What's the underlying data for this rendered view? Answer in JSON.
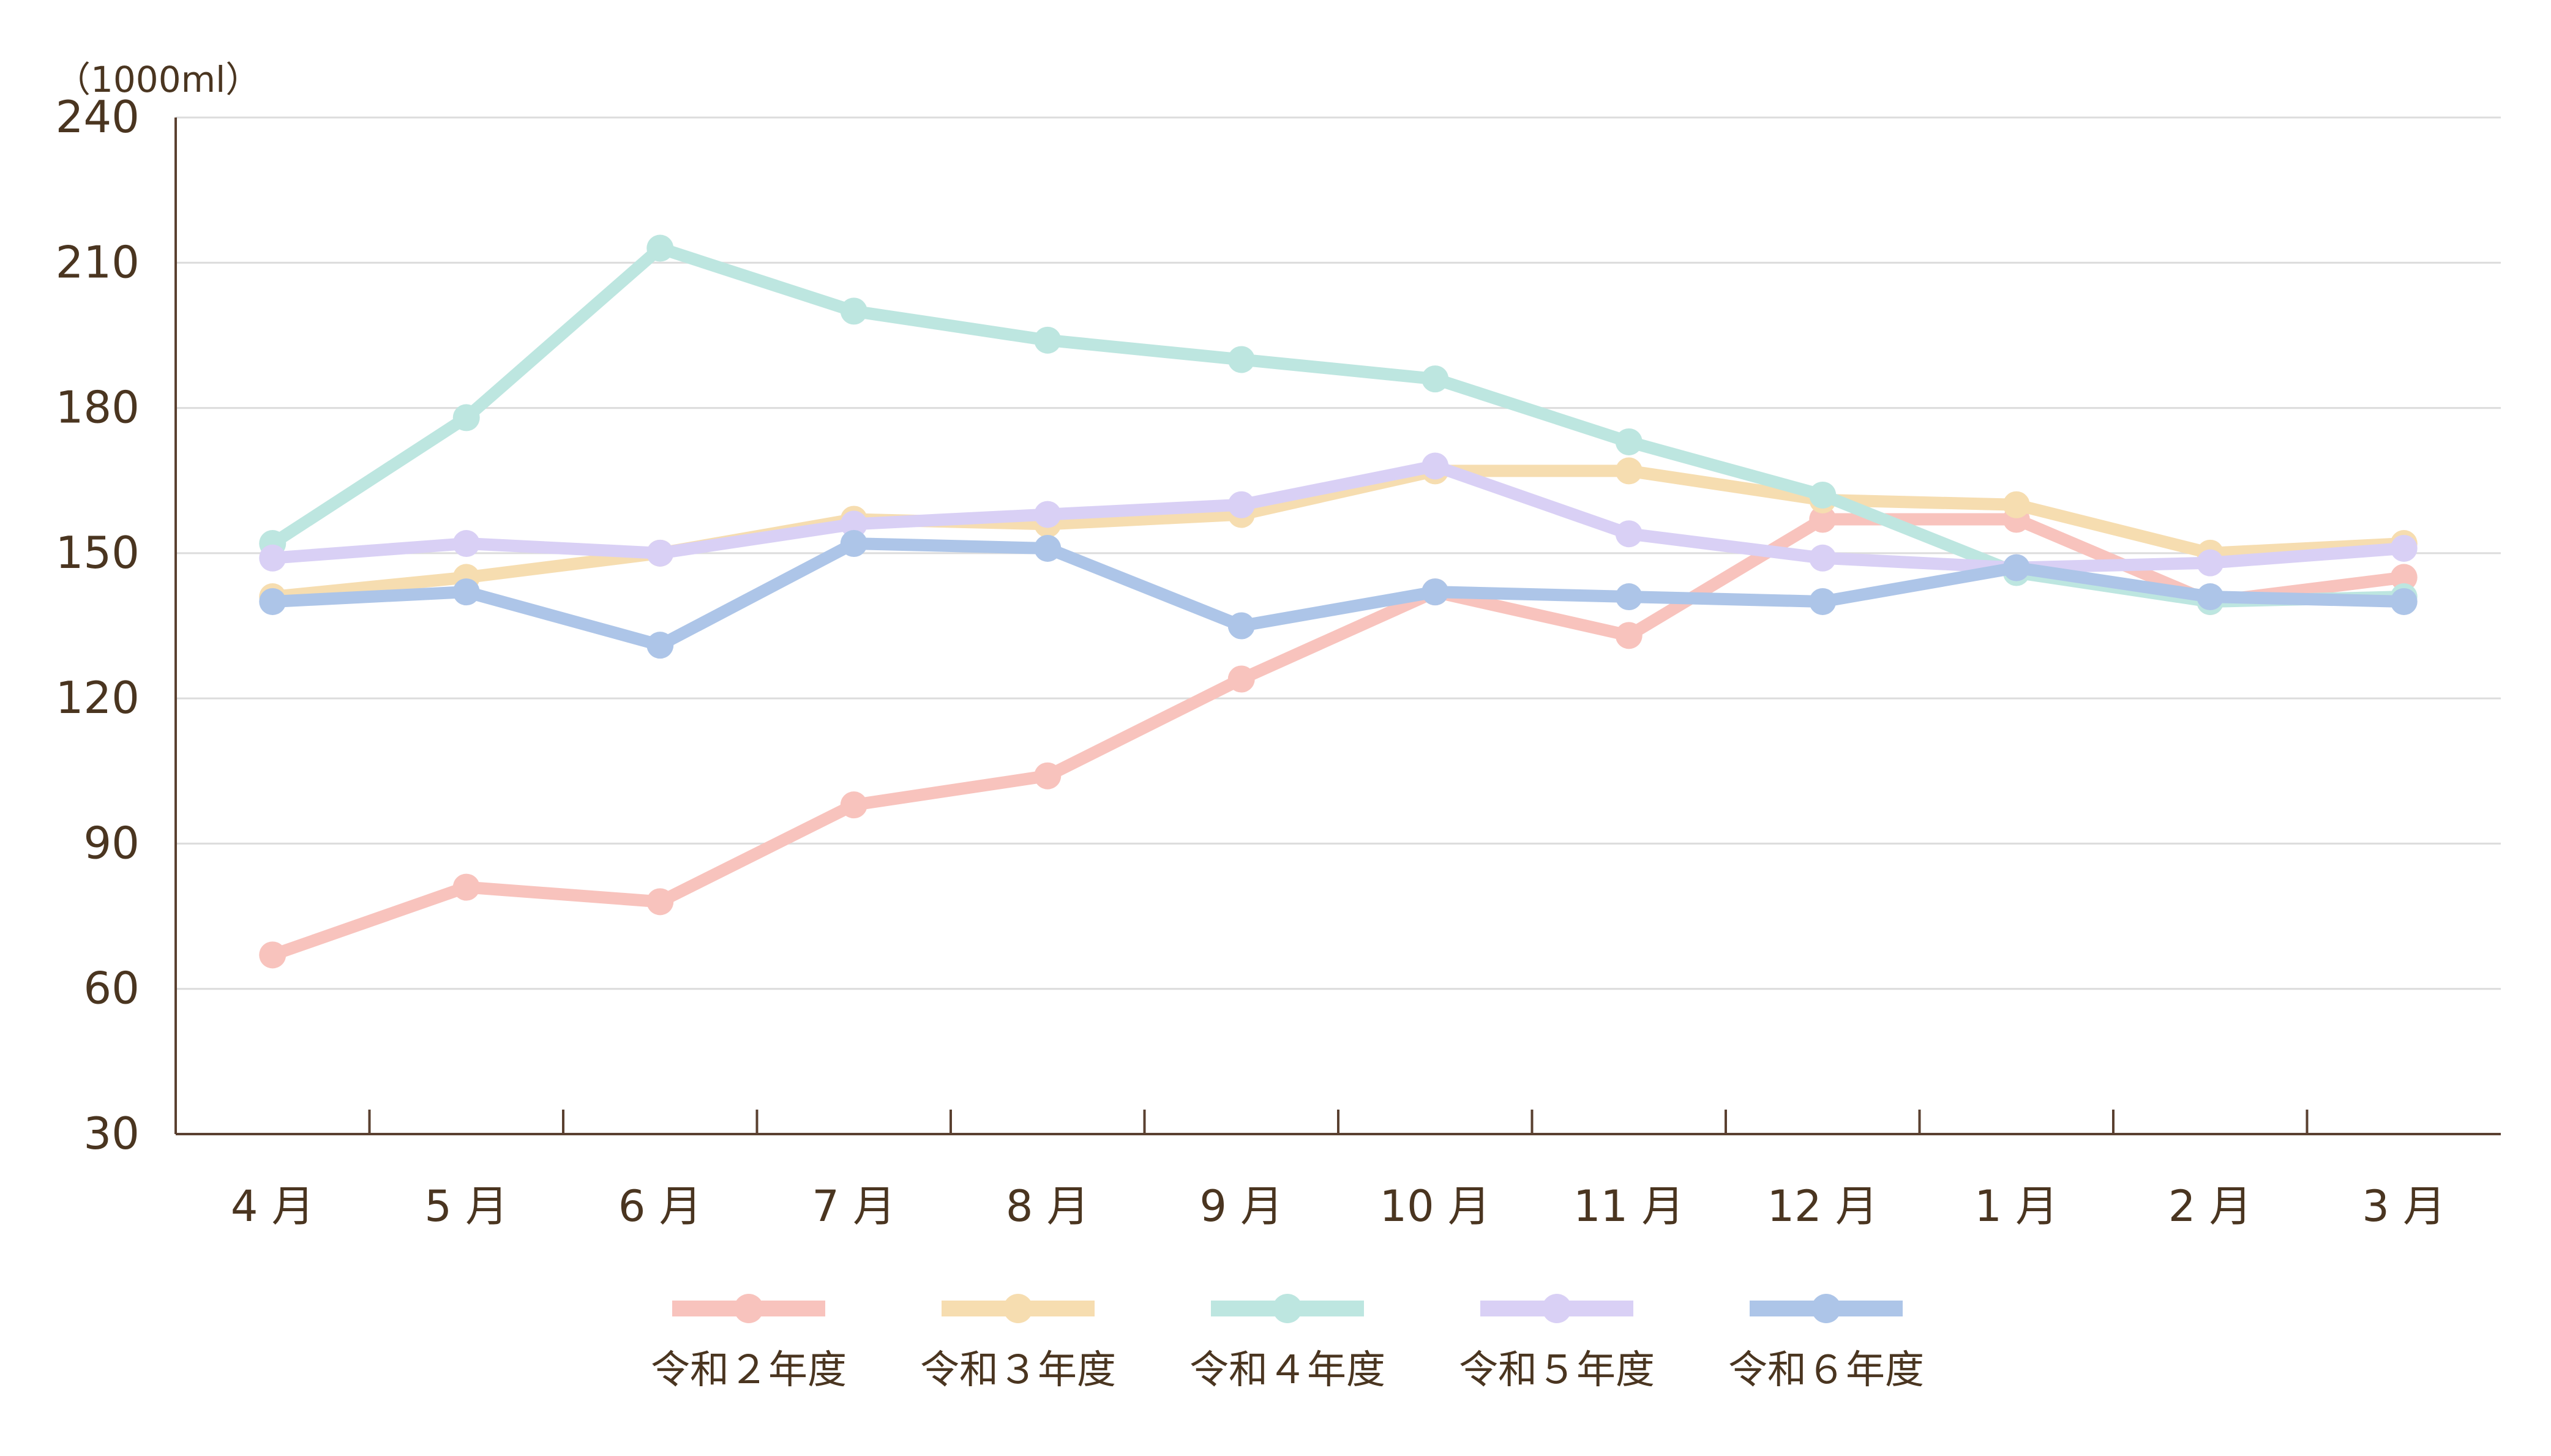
{
  "chart_data": {
    "type": "line",
    "unit_label": "（1000ml）",
    "categories": [
      "4 月",
      "5 月",
      "6 月",
      "7 月",
      "8 月",
      "9 月",
      "10 月",
      "11 月",
      "12 月",
      "1 月",
      "2 月",
      "3 月"
    ],
    "y_ticks": [
      "240",
      "210",
      "180",
      "150",
      "120",
      "90",
      "60",
      "30"
    ],
    "ylim": [
      30,
      240
    ],
    "grid": true,
    "legend_position": "bottom",
    "series": [
      {
        "name": "令和２年度",
        "color": "#f8c3bd",
        "values": [
          67,
          81,
          78,
          98,
          104,
          124,
          142,
          133,
          157,
          157,
          140,
          145
        ]
      },
      {
        "name": "令和３年度",
        "color": "#f6ddb0",
        "values": [
          141,
          145,
          150,
          157,
          156,
          158,
          167,
          167,
          161,
          160,
          150,
          152
        ]
      },
      {
        "name": "令和４年度",
        "color": "#bde6e0",
        "values": [
          152,
          178,
          213,
          200,
          194,
          190,
          186,
          173,
          162,
          146,
          140,
          141
        ]
      },
      {
        "name": "令和５年度",
        "color": "#d9d0f5",
        "values": [
          149,
          152,
          150,
          156,
          158,
          160,
          168,
          154,
          149,
          147,
          148,
          151
        ]
      },
      {
        "name": "令和６年度",
        "color": "#adc5e8",
        "values": [
          140,
          142,
          131,
          152,
          151,
          135,
          142,
          141,
          140,
          147,
          141,
          140
        ]
      }
    ]
  }
}
